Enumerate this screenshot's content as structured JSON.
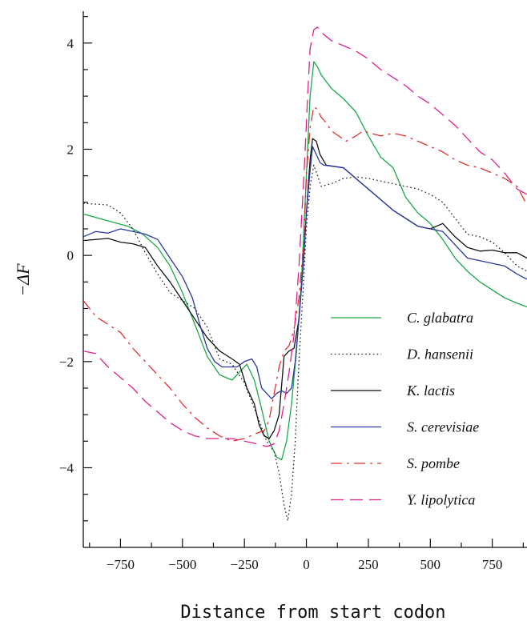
{
  "chart_data": {
    "type": "line",
    "title": "",
    "xlabel": "Distance from start codon",
    "ylabel": "−ΔF",
    "xlim": [
      -900,
      890
    ],
    "ylim": [
      -5.5,
      4.6
    ],
    "xticks": [
      -750,
      -500,
      -250,
      0,
      250,
      500,
      750
    ],
    "xtick_labels": [
      "−750",
      "−500",
      "−250",
      "0",
      "250",
      "500",
      "750"
    ],
    "yticks": [
      -4,
      -2,
      0,
      2,
      4
    ],
    "ytick_labels": [
      "−4",
      "−2",
      "0",
      "2",
      "4"
    ],
    "grid": false,
    "legend_position": "lower-right",
    "series": [
      {
        "name": "C. glabatra",
        "color": "#1aa84a",
        "dash": "solid",
        "points": [
          [
            -900,
            0.78
          ],
          [
            -800,
            0.65
          ],
          [
            -720,
            0.55
          ],
          [
            -660,
            0.4
          ],
          [
            -600,
            0.15
          ],
          [
            -550,
            -0.2
          ],
          [
            -500,
            -0.7
          ],
          [
            -450,
            -1.3
          ],
          [
            -400,
            -1.9
          ],
          [
            -350,
            -2.25
          ],
          [
            -300,
            -2.35
          ],
          [
            -270,
            -2.2
          ],
          [
            -240,
            -2.05
          ],
          [
            -210,
            -2.35
          ],
          [
            -180,
            -2.9
          ],
          [
            -150,
            -3.5
          ],
          [
            -120,
            -3.8
          ],
          [
            -100,
            -3.85
          ],
          [
            -80,
            -3.5
          ],
          [
            -60,
            -2.8
          ],
          [
            -40,
            -1.8
          ],
          [
            -20,
            -0.5
          ],
          [
            0,
            1.5
          ],
          [
            15,
            3.0
          ],
          [
            30,
            3.65
          ],
          [
            45,
            3.55
          ],
          [
            60,
            3.4
          ],
          [
            100,
            3.15
          ],
          [
            150,
            2.95
          ],
          [
            200,
            2.7
          ],
          [
            250,
            2.25
          ],
          [
            300,
            1.85
          ],
          [
            350,
            1.65
          ],
          [
            400,
            1.1
          ],
          [
            450,
            0.8
          ],
          [
            500,
            0.6
          ],
          [
            550,
            0.3
          ],
          [
            600,
            -0.05
          ],
          [
            650,
            -0.3
          ],
          [
            700,
            -0.5
          ],
          [
            750,
            -0.65
          ],
          [
            800,
            -0.8
          ],
          [
            850,
            -0.9
          ],
          [
            890,
            -0.97
          ]
        ]
      },
      {
        "name": "D. hansenii",
        "color": "#222222",
        "dash": "dotted",
        "points": [
          [
            -900,
            0.98
          ],
          [
            -800,
            0.95
          ],
          [
            -750,
            0.8
          ],
          [
            -700,
            0.5
          ],
          [
            -650,
            0.05
          ],
          [
            -600,
            -0.35
          ],
          [
            -550,
            -0.7
          ],
          [
            -500,
            -0.85
          ],
          [
            -450,
            -1.0
          ],
          [
            -400,
            -1.35
          ],
          [
            -350,
            -1.95
          ],
          [
            -300,
            -2.05
          ],
          [
            -250,
            -2.4
          ],
          [
            -200,
            -3.0
          ],
          [
            -160,
            -3.5
          ],
          [
            -130,
            -3.7
          ],
          [
            -110,
            -4.1
          ],
          [
            -90,
            -4.7
          ],
          [
            -75,
            -5.0
          ],
          [
            -60,
            -4.5
          ],
          [
            -45,
            -3.5
          ],
          [
            -30,
            -2.0
          ],
          [
            -15,
            -0.8
          ],
          [
            0,
            0.5
          ],
          [
            15,
            1.3
          ],
          [
            30,
            1.7
          ],
          [
            45,
            1.5
          ],
          [
            60,
            1.3
          ],
          [
            100,
            1.35
          ],
          [
            150,
            1.45
          ],
          [
            200,
            1.48
          ],
          [
            250,
            1.45
          ],
          [
            300,
            1.4
          ],
          [
            350,
            1.35
          ],
          [
            400,
            1.3
          ],
          [
            450,
            1.25
          ],
          [
            500,
            1.15
          ],
          [
            550,
            1.0
          ],
          [
            600,
            0.7
          ],
          [
            650,
            0.4
          ],
          [
            700,
            0.35
          ],
          [
            750,
            0.25
          ],
          [
            800,
            0.05
          ],
          [
            850,
            -0.2
          ],
          [
            890,
            -0.3
          ]
        ]
      },
      {
        "name": "K. lactis",
        "color": "#111111",
        "dash": "solid",
        "points": [
          [
            -900,
            0.28
          ],
          [
            -800,
            0.32
          ],
          [
            -750,
            0.25
          ],
          [
            -700,
            0.22
          ],
          [
            -650,
            0.15
          ],
          [
            -600,
            -0.2
          ],
          [
            -550,
            -0.5
          ],
          [
            -500,
            -0.85
          ],
          [
            -450,
            -1.2
          ],
          [
            -400,
            -1.55
          ],
          [
            -350,
            -1.8
          ],
          [
            -300,
            -1.95
          ],
          [
            -270,
            -2.05
          ],
          [
            -240,
            -2.5
          ],
          [
            -210,
            -2.8
          ],
          [
            -190,
            -3.2
          ],
          [
            -170,
            -3.4
          ],
          [
            -150,
            -3.45
          ],
          [
            -130,
            -3.3
          ],
          [
            -110,
            -3.0
          ],
          [
            -90,
            -1.9
          ],
          [
            -70,
            -1.8
          ],
          [
            -50,
            -1.75
          ],
          [
            -30,
            -1.2
          ],
          [
            -10,
            0.0
          ],
          [
            0,
            0.8
          ],
          [
            15,
            1.8
          ],
          [
            25,
            2.2
          ],
          [
            40,
            2.15
          ],
          [
            55,
            1.9
          ],
          [
            80,
            1.7
          ],
          [
            150,
            1.65
          ],
          [
            200,
            1.45
          ],
          [
            250,
            1.25
          ],
          [
            300,
            1.05
          ],
          [
            350,
            0.85
          ],
          [
            400,
            0.7
          ],
          [
            450,
            0.55
          ],
          [
            500,
            0.5
          ],
          [
            550,
            0.6
          ],
          [
            600,
            0.35
          ],
          [
            650,
            0.15
          ],
          [
            700,
            0.08
          ],
          [
            750,
            0.1
          ],
          [
            800,
            0.05
          ],
          [
            850,
            0.05
          ],
          [
            890,
            -0.05
          ]
        ]
      },
      {
        "name": "S. cerevisiae",
        "color": "#2a3aa0",
        "dash": "solid",
        "points": [
          [
            -900,
            0.35
          ],
          [
            -850,
            0.45
          ],
          [
            -800,
            0.42
          ],
          [
            -750,
            0.5
          ],
          [
            -700,
            0.45
          ],
          [
            -650,
            0.4
          ],
          [
            -600,
            0.3
          ],
          [
            -550,
            -0.05
          ],
          [
            -500,
            -0.4
          ],
          [
            -460,
            -0.8
          ],
          [
            -430,
            -1.3
          ],
          [
            -400,
            -1.75
          ],
          [
            -370,
            -2.0
          ],
          [
            -340,
            -2.1
          ],
          [
            -310,
            -2.1
          ],
          [
            -280,
            -2.1
          ],
          [
            -250,
            -2.0
          ],
          [
            -220,
            -1.95
          ],
          [
            -200,
            -2.1
          ],
          [
            -180,
            -2.5
          ],
          [
            -160,
            -2.6
          ],
          [
            -140,
            -2.7
          ],
          [
            -120,
            -2.6
          ],
          [
            -100,
            -2.55
          ],
          [
            -80,
            -2.6
          ],
          [
            -60,
            -2.5
          ],
          [
            -45,
            -2.0
          ],
          [
            -30,
            -1.2
          ],
          [
            -15,
            -0.3
          ],
          [
            0,
            0.8
          ],
          [
            15,
            1.6
          ],
          [
            25,
            2.05
          ],
          [
            40,
            1.9
          ],
          [
            55,
            1.75
          ],
          [
            70,
            1.7
          ],
          [
            150,
            1.65
          ],
          [
            200,
            1.45
          ],
          [
            250,
            1.25
          ],
          [
            300,
            1.05
          ],
          [
            350,
            0.85
          ],
          [
            400,
            0.7
          ],
          [
            450,
            0.55
          ],
          [
            500,
            0.5
          ],
          [
            550,
            0.45
          ],
          [
            600,
            0.2
          ],
          [
            650,
            -0.05
          ],
          [
            700,
            -0.1
          ],
          [
            750,
            -0.15
          ],
          [
            800,
            -0.2
          ],
          [
            850,
            -0.35
          ],
          [
            890,
            -0.45
          ]
        ]
      },
      {
        "name": "S. pombe",
        "color": "#e23030",
        "dash": "dashdot",
        "points": [
          [
            -900,
            -0.85
          ],
          [
            -850,
            -1.15
          ],
          [
            -800,
            -1.3
          ],
          [
            -750,
            -1.45
          ],
          [
            -700,
            -1.75
          ],
          [
            -650,
            -2.0
          ],
          [
            -600,
            -2.25
          ],
          [
            -550,
            -2.5
          ],
          [
            -500,
            -2.8
          ],
          [
            -450,
            -3.05
          ],
          [
            -400,
            -3.25
          ],
          [
            -350,
            -3.4
          ],
          [
            -300,
            -3.5
          ],
          [
            -250,
            -3.45
          ],
          [
            -200,
            -3.35
          ],
          [
            -170,
            -3.3
          ],
          [
            -150,
            -3.1
          ],
          [
            -130,
            -2.6
          ],
          [
            -110,
            -2.1
          ],
          [
            -90,
            -1.8
          ],
          [
            -70,
            -1.7
          ],
          [
            -50,
            -1.4
          ],
          [
            -30,
            -0.8
          ],
          [
            -10,
            0.3
          ],
          [
            0,
            1.5
          ],
          [
            15,
            2.4
          ],
          [
            30,
            2.8
          ],
          [
            45,
            2.75
          ],
          [
            60,
            2.6
          ],
          [
            80,
            2.5
          ],
          [
            100,
            2.35
          ],
          [
            130,
            2.25
          ],
          [
            160,
            2.15
          ],
          [
            200,
            2.25
          ],
          [
            230,
            2.35
          ],
          [
            260,
            2.3
          ],
          [
            300,
            2.25
          ],
          [
            350,
            2.3
          ],
          [
            400,
            2.25
          ],
          [
            450,
            2.15
          ],
          [
            500,
            2.05
          ],
          [
            550,
            1.95
          ],
          [
            600,
            1.8
          ],
          [
            650,
            1.7
          ],
          [
            700,
            1.65
          ],
          [
            750,
            1.55
          ],
          [
            800,
            1.45
          ],
          [
            850,
            1.3
          ],
          [
            890,
            0.95
          ]
        ]
      },
      {
        "name": "Y. lipolytica",
        "color": "#e0208a",
        "dash": "dashed",
        "points": [
          [
            -900,
            -1.8
          ],
          [
            -850,
            -1.85
          ],
          [
            -800,
            -2.1
          ],
          [
            -750,
            -2.3
          ],
          [
            -700,
            -2.5
          ],
          [
            -650,
            -2.75
          ],
          [
            -600,
            -2.95
          ],
          [
            -550,
            -3.15
          ],
          [
            -500,
            -3.3
          ],
          [
            -450,
            -3.4
          ],
          [
            -400,
            -3.45
          ],
          [
            -350,
            -3.45
          ],
          [
            -300,
            -3.45
          ],
          [
            -250,
            -3.5
          ],
          [
            -200,
            -3.55
          ],
          [
            -160,
            -3.6
          ],
          [
            -130,
            -3.55
          ],
          [
            -110,
            -3.3
          ],
          [
            -90,
            -2.8
          ],
          [
            -70,
            -2.2
          ],
          [
            -50,
            -1.5
          ],
          [
            -30,
            -0.2
          ],
          [
            -10,
            1.5
          ],
          [
            5,
            3.0
          ],
          [
            15,
            3.9
          ],
          [
            30,
            4.25
          ],
          [
            45,
            4.3
          ],
          [
            60,
            4.2
          ],
          [
            100,
            4.05
          ],
          [
            150,
            3.95
          ],
          [
            200,
            3.85
          ],
          [
            250,
            3.7
          ],
          [
            300,
            3.5
          ],
          [
            350,
            3.35
          ],
          [
            400,
            3.2
          ],
          [
            450,
            3.0
          ],
          [
            500,
            2.85
          ],
          [
            550,
            2.65
          ],
          [
            600,
            2.45
          ],
          [
            650,
            2.2
          ],
          [
            700,
            1.95
          ],
          [
            750,
            1.8
          ],
          [
            800,
            1.55
          ],
          [
            850,
            1.25
          ],
          [
            890,
            1.15
          ]
        ]
      }
    ]
  }
}
